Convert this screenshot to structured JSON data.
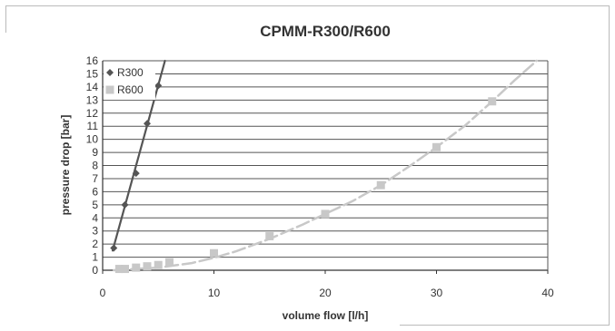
{
  "chart_data": {
    "type": "scatter",
    "title": "CPMM-R300/R600",
    "xlabel": "volume flow [l/h]",
    "ylabel": "pressure drop [bar]",
    "xlim": [
      0,
      40
    ],
    "ylim": [
      0,
      16
    ],
    "xticks": [
      0,
      10,
      20,
      30,
      40
    ],
    "yticks": [
      0,
      1,
      2,
      3,
      4,
      5,
      6,
      7,
      8,
      9,
      10,
      11,
      12,
      13,
      14,
      15,
      16
    ],
    "grid": "horizontal",
    "legend_position": "top-left",
    "series": [
      {
        "name": "R300",
        "marker": "diamond",
        "line": "solid",
        "color": "#555555",
        "x": [
          1,
          2,
          3,
          4,
          5
        ],
        "y": [
          1.7,
          5.0,
          7.4,
          11.2,
          14.1
        ],
        "trend": [
          [
            0.9,
            1.5
          ],
          [
            5.6,
            16
          ]
        ]
      },
      {
        "name": "R600",
        "marker": "square",
        "line": "dashed",
        "color": "#c8c8c8",
        "x": [
          1.5,
          2,
          3,
          4,
          5,
          6,
          10,
          15,
          20,
          25,
          30,
          35
        ],
        "y": [
          0.1,
          0.1,
          0.2,
          0.3,
          0.4,
          0.6,
          1.3,
          2.6,
          4.3,
          6.5,
          9.4,
          12.9
        ],
        "trend": [
          [
            1,
            0
          ],
          [
            5,
            0.2
          ],
          [
            8,
            0.55
          ],
          [
            10,
            0.95
          ],
          [
            12,
            1.45
          ],
          [
            15,
            2.4
          ],
          [
            18,
            3.5
          ],
          [
            20,
            4.3
          ],
          [
            22.5,
            5.3
          ],
          [
            25,
            6.5
          ],
          [
            27.5,
            7.9
          ],
          [
            30,
            9.4
          ],
          [
            32.5,
            11.0
          ],
          [
            35,
            12.9
          ],
          [
            37,
            14.5
          ],
          [
            39,
            16
          ]
        ]
      }
    ]
  }
}
